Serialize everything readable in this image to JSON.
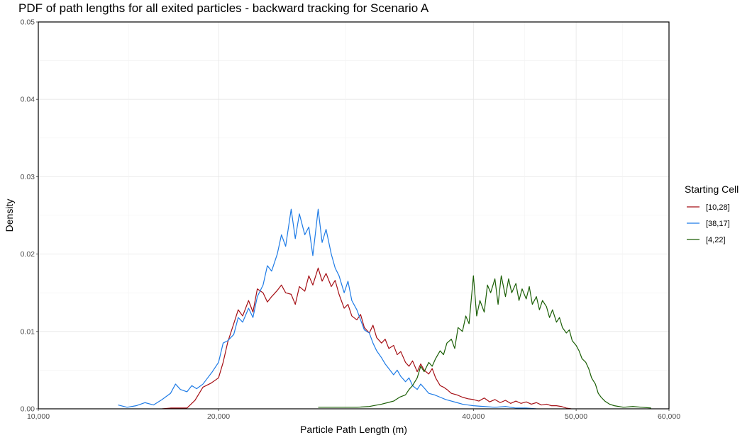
{
  "chart_data": {
    "type": "line",
    "title": "PDF of path lengths for all exited particles - backward tracking for Scenario A",
    "xlabel": "Particle Path Length (m)",
    "ylabel": "Density",
    "x_scale": "sqrt",
    "xlim": [
      10000,
      60000
    ],
    "ylim": [
      0,
      0.05
    ],
    "x_ticks": [
      10000,
      20000,
      40000,
      50000,
      60000
    ],
    "x_tick_labels": [
      "10,000",
      "20,000",
      "40,000",
      "50,000",
      "60,000"
    ],
    "y_ticks": [
      0,
      0.01,
      0.02,
      0.03,
      0.04,
      0.05
    ],
    "y_tick_labels": [
      "0.00",
      "0.01",
      "0.02",
      "0.03",
      "0.04",
      "0.05"
    ],
    "grid": true,
    "legend": {
      "title": "Starting Cell",
      "position": "right"
    },
    "series": [
      {
        "name": "[10,28]",
        "color": "#A50F15",
        "points": [
          [
            16500,
            0.0
          ],
          [
            17000,
            0.0001
          ],
          [
            17500,
            0.0001
          ],
          [
            18000,
            0.0001
          ],
          [
            18500,
            0.0011
          ],
          [
            19000,
            0.0028
          ],
          [
            19500,
            0.0033
          ],
          [
            20000,
            0.004
          ],
          [
            20300,
            0.006
          ],
          [
            20600,
            0.0086
          ],
          [
            21000,
            0.011
          ],
          [
            21300,
            0.0128
          ],
          [
            21600,
            0.012
          ],
          [
            22000,
            0.014
          ],
          [
            22300,
            0.0125
          ],
          [
            22600,
            0.0155
          ],
          [
            23000,
            0.015
          ],
          [
            23300,
            0.0138
          ],
          [
            23600,
            0.0145
          ],
          [
            24000,
            0.0153
          ],
          [
            24300,
            0.016
          ],
          [
            24600,
            0.015
          ],
          [
            25000,
            0.0148
          ],
          [
            25300,
            0.0135
          ],
          [
            25600,
            0.0158
          ],
          [
            26000,
            0.0152
          ],
          [
            26300,
            0.0172
          ],
          [
            26600,
            0.016
          ],
          [
            27000,
            0.0182
          ],
          [
            27300,
            0.0165
          ],
          [
            27600,
            0.0175
          ],
          [
            28000,
            0.0158
          ],
          [
            28300,
            0.0166
          ],
          [
            28600,
            0.0148
          ],
          [
            29000,
            0.013
          ],
          [
            29300,
            0.0135
          ],
          [
            29600,
            0.012
          ],
          [
            30000,
            0.0115
          ],
          [
            30300,
            0.0122
          ],
          [
            30600,
            0.0105
          ],
          [
            31000,
            0.0098
          ],
          [
            31300,
            0.0108
          ],
          [
            31600,
            0.0092
          ],
          [
            32000,
            0.0085
          ],
          [
            32300,
            0.009
          ],
          [
            32600,
            0.0078
          ],
          [
            33000,
            0.0082
          ],
          [
            33300,
            0.007
          ],
          [
            33600,
            0.0074
          ],
          [
            34000,
            0.006
          ],
          [
            34300,
            0.0055
          ],
          [
            34600,
            0.0062
          ],
          [
            35000,
            0.0048
          ],
          [
            35300,
            0.0058
          ],
          [
            35600,
            0.005
          ],
          [
            36000,
            0.0045
          ],
          [
            36300,
            0.0052
          ],
          [
            36600,
            0.004
          ],
          [
            37000,
            0.003
          ],
          [
            37300,
            0.0028
          ],
          [
            37600,
            0.0025
          ],
          [
            38000,
            0.002
          ],
          [
            38500,
            0.0018
          ],
          [
            39000,
            0.0015
          ],
          [
            39500,
            0.0013
          ],
          [
            40000,
            0.0012
          ],
          [
            40500,
            0.001
          ],
          [
            41000,
            0.0014
          ],
          [
            41500,
            0.0009
          ],
          [
            42000,
            0.0012
          ],
          [
            42500,
            0.0008
          ],
          [
            43000,
            0.0011
          ],
          [
            43500,
            0.0007
          ],
          [
            44000,
            0.001
          ],
          [
            44500,
            0.0007
          ],
          [
            45000,
            0.0009
          ],
          [
            45500,
            0.0006
          ],
          [
            46000,
            0.0008
          ],
          [
            46500,
            0.0005
          ],
          [
            47000,
            0.0006
          ],
          [
            47500,
            0.0004
          ],
          [
            48000,
            0.0004
          ],
          [
            48500,
            0.0003
          ],
          [
            49000,
            0.0001
          ],
          [
            49500,
            0.0
          ]
        ]
      },
      {
        "name": "[38,17]",
        "color": "#1E7BE6",
        "points": [
          [
            14000,
            0.0005
          ],
          [
            14500,
            0.0002
          ],
          [
            15000,
            0.0004
          ],
          [
            15500,
            0.0008
          ],
          [
            16000,
            0.0005
          ],
          [
            16500,
            0.0012
          ],
          [
            17000,
            0.002
          ],
          [
            17300,
            0.0032
          ],
          [
            17600,
            0.0025
          ],
          [
            18000,
            0.0022
          ],
          [
            18300,
            0.003
          ],
          [
            18600,
            0.0026
          ],
          [
            19000,
            0.0032
          ],
          [
            19300,
            0.004
          ],
          [
            19600,
            0.0048
          ],
          [
            20000,
            0.006
          ],
          [
            20300,
            0.0085
          ],
          [
            20600,
            0.0088
          ],
          [
            21000,
            0.0096
          ],
          [
            21300,
            0.0118
          ],
          [
            21600,
            0.0112
          ],
          [
            22000,
            0.013
          ],
          [
            22300,
            0.0118
          ],
          [
            22600,
            0.0145
          ],
          [
            23000,
            0.016
          ],
          [
            23300,
            0.0185
          ],
          [
            23600,
            0.0178
          ],
          [
            24000,
            0.02
          ],
          [
            24300,
            0.0225
          ],
          [
            24600,
            0.021
          ],
          [
            25000,
            0.0258
          ],
          [
            25300,
            0.022
          ],
          [
            25600,
            0.0252
          ],
          [
            26000,
            0.0225
          ],
          [
            26300,
            0.0235
          ],
          [
            26600,
            0.0198
          ],
          [
            27000,
            0.0258
          ],
          [
            27300,
            0.0215
          ],
          [
            27600,
            0.0232
          ],
          [
            28000,
            0.02
          ],
          [
            28300,
            0.0182
          ],
          [
            28600,
            0.0172
          ],
          [
            29000,
            0.015
          ],
          [
            29300,
            0.0165
          ],
          [
            29600,
            0.014
          ],
          [
            30000,
            0.0128
          ],
          [
            30300,
            0.0115
          ],
          [
            30600,
            0.0102
          ],
          [
            31000,
            0.0098
          ],
          [
            31300,
            0.0085
          ],
          [
            31600,
            0.0075
          ],
          [
            32000,
            0.0066
          ],
          [
            32300,
            0.0058
          ],
          [
            32600,
            0.0052
          ],
          [
            33000,
            0.0044
          ],
          [
            33300,
            0.005
          ],
          [
            33600,
            0.0042
          ],
          [
            34000,
            0.0035
          ],
          [
            34300,
            0.004
          ],
          [
            34600,
            0.003
          ],
          [
            35000,
            0.0025
          ],
          [
            35300,
            0.0032
          ],
          [
            35600,
            0.0027
          ],
          [
            36000,
            0.002
          ],
          [
            36500,
            0.0018
          ],
          [
            37000,
            0.0015
          ],
          [
            37500,
            0.0012
          ],
          [
            38000,
            0.001
          ],
          [
            38500,
            0.0008
          ],
          [
            39000,
            0.0006
          ],
          [
            39500,
            0.0005
          ],
          [
            40000,
            0.0004
          ],
          [
            41000,
            0.0003
          ],
          [
            42000,
            0.0002
          ],
          [
            43000,
            0.0003
          ],
          [
            44000,
            0.0001
          ],
          [
            45000,
            0.0001
          ],
          [
            46000,
            0.0
          ]
        ]
      },
      {
        "name": "[4,22]",
        "color": "#1A5E05",
        "points": [
          [
            27000,
            0.0002
          ],
          [
            28000,
            0.0002
          ],
          [
            29000,
            0.0002
          ],
          [
            30000,
            0.0002
          ],
          [
            31000,
            0.0003
          ],
          [
            32000,
            0.0006
          ],
          [
            32500,
            0.0008
          ],
          [
            33000,
            0.001
          ],
          [
            33500,
            0.0015
          ],
          [
            34000,
            0.0018
          ],
          [
            34300,
            0.0025
          ],
          [
            34600,
            0.003
          ],
          [
            35000,
            0.004
          ],
          [
            35300,
            0.0055
          ],
          [
            35600,
            0.0048
          ],
          [
            36000,
            0.006
          ],
          [
            36300,
            0.0055
          ],
          [
            36600,
            0.0065
          ],
          [
            37000,
            0.0075
          ],
          [
            37300,
            0.007
          ],
          [
            37600,
            0.0085
          ],
          [
            38000,
            0.009
          ],
          [
            38300,
            0.0078
          ],
          [
            38600,
            0.0105
          ],
          [
            39000,
            0.01
          ],
          [
            39300,
            0.012
          ],
          [
            39600,
            0.011
          ],
          [
            40000,
            0.0172
          ],
          [
            40300,
            0.012
          ],
          [
            40600,
            0.014
          ],
          [
            41000,
            0.0125
          ],
          [
            41300,
            0.016
          ],
          [
            41600,
            0.015
          ],
          [
            42000,
            0.0168
          ],
          [
            42300,
            0.0135
          ],
          [
            42600,
            0.0172
          ],
          [
            43000,
            0.0145
          ],
          [
            43300,
            0.0168
          ],
          [
            43600,
            0.015
          ],
          [
            44000,
            0.0162
          ],
          [
            44300,
            0.014
          ],
          [
            44600,
            0.0155
          ],
          [
            45000,
            0.0142
          ],
          [
            45300,
            0.0158
          ],
          [
            45600,
            0.0135
          ],
          [
            46000,
            0.0145
          ],
          [
            46300,
            0.0128
          ],
          [
            46600,
            0.014
          ],
          [
            47000,
            0.0132
          ],
          [
            47300,
            0.0118
          ],
          [
            47600,
            0.0128
          ],
          [
            48000,
            0.0112
          ],
          [
            48300,
            0.0118
          ],
          [
            48600,
            0.0105
          ],
          [
            49000,
            0.0098
          ],
          [
            49300,
            0.0102
          ],
          [
            49600,
            0.0088
          ],
          [
            50000,
            0.0082
          ],
          [
            50300,
            0.0075
          ],
          [
            50600,
            0.0065
          ],
          [
            51000,
            0.006
          ],
          [
            51300,
            0.0052
          ],
          [
            51600,
            0.004
          ],
          [
            52000,
            0.0032
          ],
          [
            52300,
            0.002
          ],
          [
            52600,
            0.0015
          ],
          [
            53000,
            0.001
          ],
          [
            53500,
            0.0006
          ],
          [
            54000,
            0.0004
          ],
          [
            55000,
            0.0002
          ],
          [
            56000,
            0.0003
          ],
          [
            57000,
            0.0002
          ],
          [
            58000,
            0.0001
          ]
        ]
      }
    ]
  }
}
